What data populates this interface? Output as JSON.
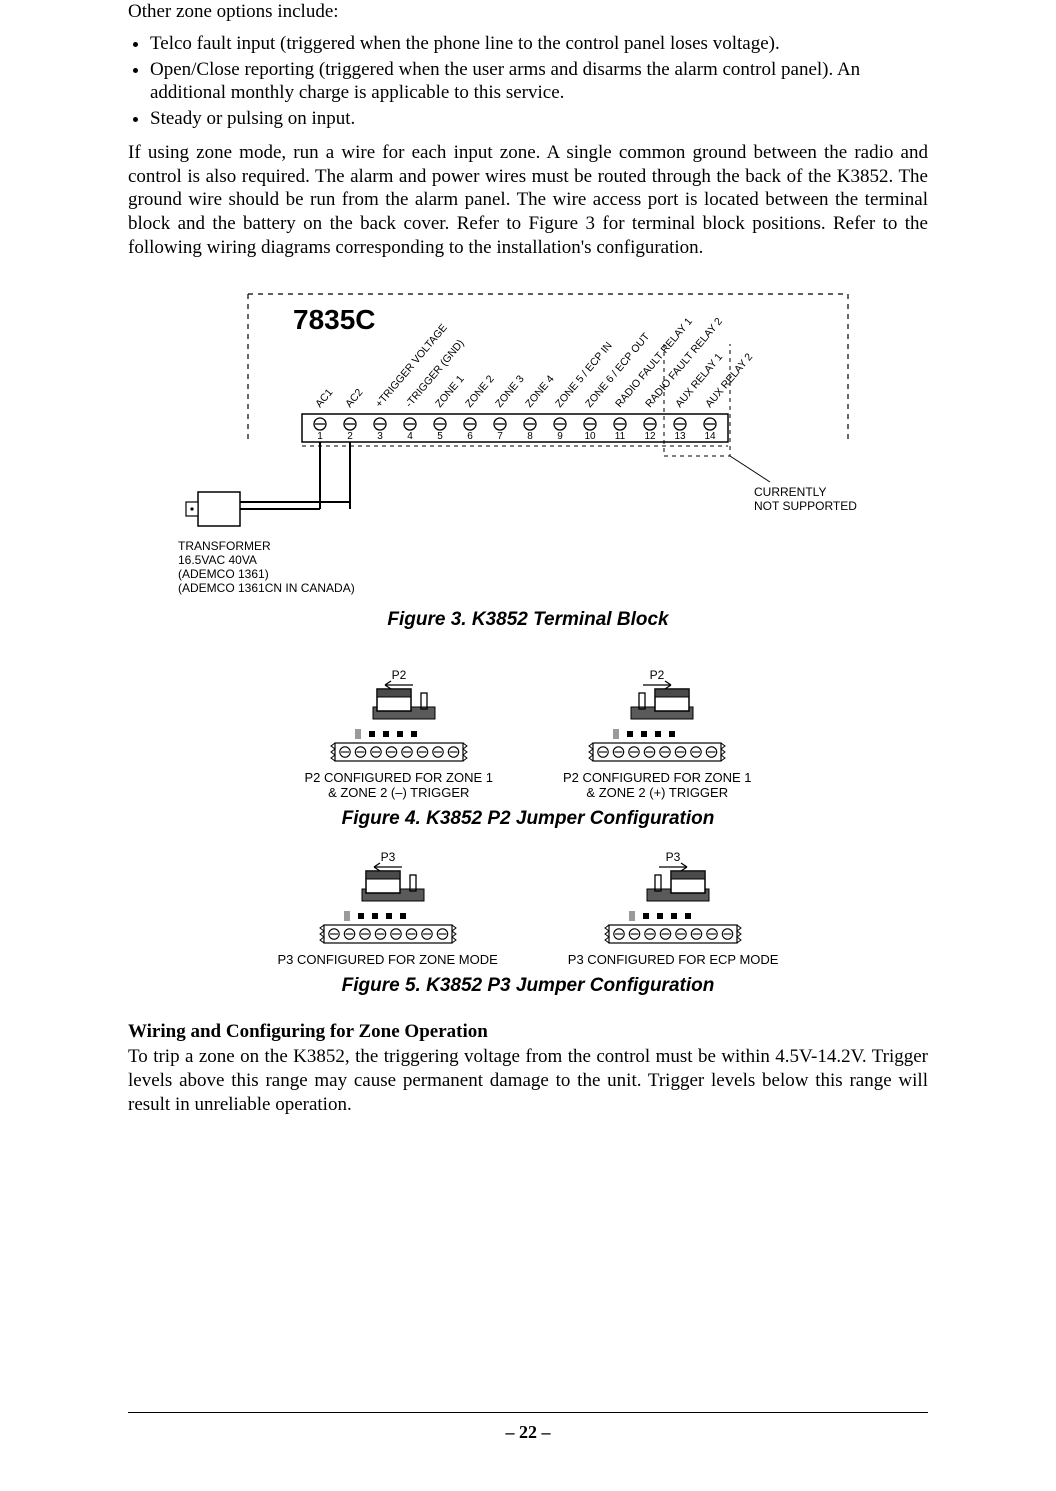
{
  "intro": "Other zone options include:",
  "bullets": [
    "Telco fault input (triggered when the phone line to the control panel loses voltage).",
    "Open/Close reporting (triggered when the user arms and disarms the alarm control panel).  An additional monthly charge is applicable to this service.",
    "Steady or pulsing on input."
  ],
  "paragraph1": "If using zone mode, run a wire for each input zone. A single common ground between the radio and control is also required. The alarm and power wires must be routed through the back of the K3852. The ground wire should be run from the alarm panel. The wire access port is located between the terminal block and the battery on the back cover. Refer to Figure 3 for terminal block positions. Refer to the following wiring diagrams corresponding to the installation's configuration.",
  "fig3": {
    "model_label": "7835C",
    "terminals": [
      {
        "num": "1",
        "label": "AC1"
      },
      {
        "num": "2",
        "label": "AC2"
      },
      {
        "num": "3",
        "label": "+TRIGGER VOLTAGE"
      },
      {
        "num": "4",
        "label": "-TRIGGER (GND)"
      },
      {
        "num": "5",
        "label": "ZONE 1"
      },
      {
        "num": "6",
        "label": "ZONE 2"
      },
      {
        "num": "7",
        "label": "ZONE 3"
      },
      {
        "num": "8",
        "label": "ZONE 4"
      },
      {
        "num": "9",
        "label": "ZONE 5 / ECP IN"
      },
      {
        "num": "10",
        "label": "ZONE 6 / ECP OUT"
      },
      {
        "num": "11",
        "label": "RADIO FAULT RELAY 1"
      },
      {
        "num": "12",
        "label": "RADIO FAULT RELAY 2"
      },
      {
        "num": "13",
        "label": "AUX RELAY 1"
      },
      {
        "num": "14",
        "label": "AUX RELAY 2"
      }
    ],
    "note_right": "CURRENTLY\nNOT SUPPORTED",
    "transformer_lines": [
      "TRANSFORMER",
      "16.5VAC 40VA",
      "(ADEMCO 1361)",
      "(ADEMCO 1361CN IN CANADA)"
    ],
    "caption": "Figure 3. K3852 Terminal Block"
  },
  "fig4": {
    "left": {
      "top": "P2",
      "caption_l1": "P2 CONFIGURED FOR ZONE 1",
      "caption_l2": "& ZONE 2 (–) TRIGGER",
      "arrow": "left"
    },
    "right": {
      "top": "P2",
      "caption_l1": "P2 CONFIGURED FOR ZONE 1",
      "caption_l2": "& ZONE 2 (+) TRIGGER",
      "arrow": "right"
    },
    "caption": "Figure 4. K3852 P2 Jumper Configuration"
  },
  "fig5": {
    "left": {
      "top": "P3",
      "caption_l1": "P3 CONFIGURED FOR ZONE MODE",
      "arrow": "left"
    },
    "right": {
      "top": "P3",
      "caption_l1": "P3 CONFIGURED FOR ECP MODE",
      "arrow": "right"
    },
    "caption": "Figure 5. K3852 P3 Jumper Configuration"
  },
  "section_head": "Wiring and Configuring for Zone Operation",
  "paragraph2": "To trip a zone on the K3852, the triggering voltage from the control must be within 4.5V-14.2V. Trigger levels above this range may cause permanent damage to the unit. Trigger levels below this range will result in unreliable operation.",
  "page_number": "– 22 –",
  "colors": {
    "text": "#000000",
    "bg": "#ffffff",
    "terminal_fill": "#ffffff",
    "gray_fill": "#9a9a9a"
  }
}
